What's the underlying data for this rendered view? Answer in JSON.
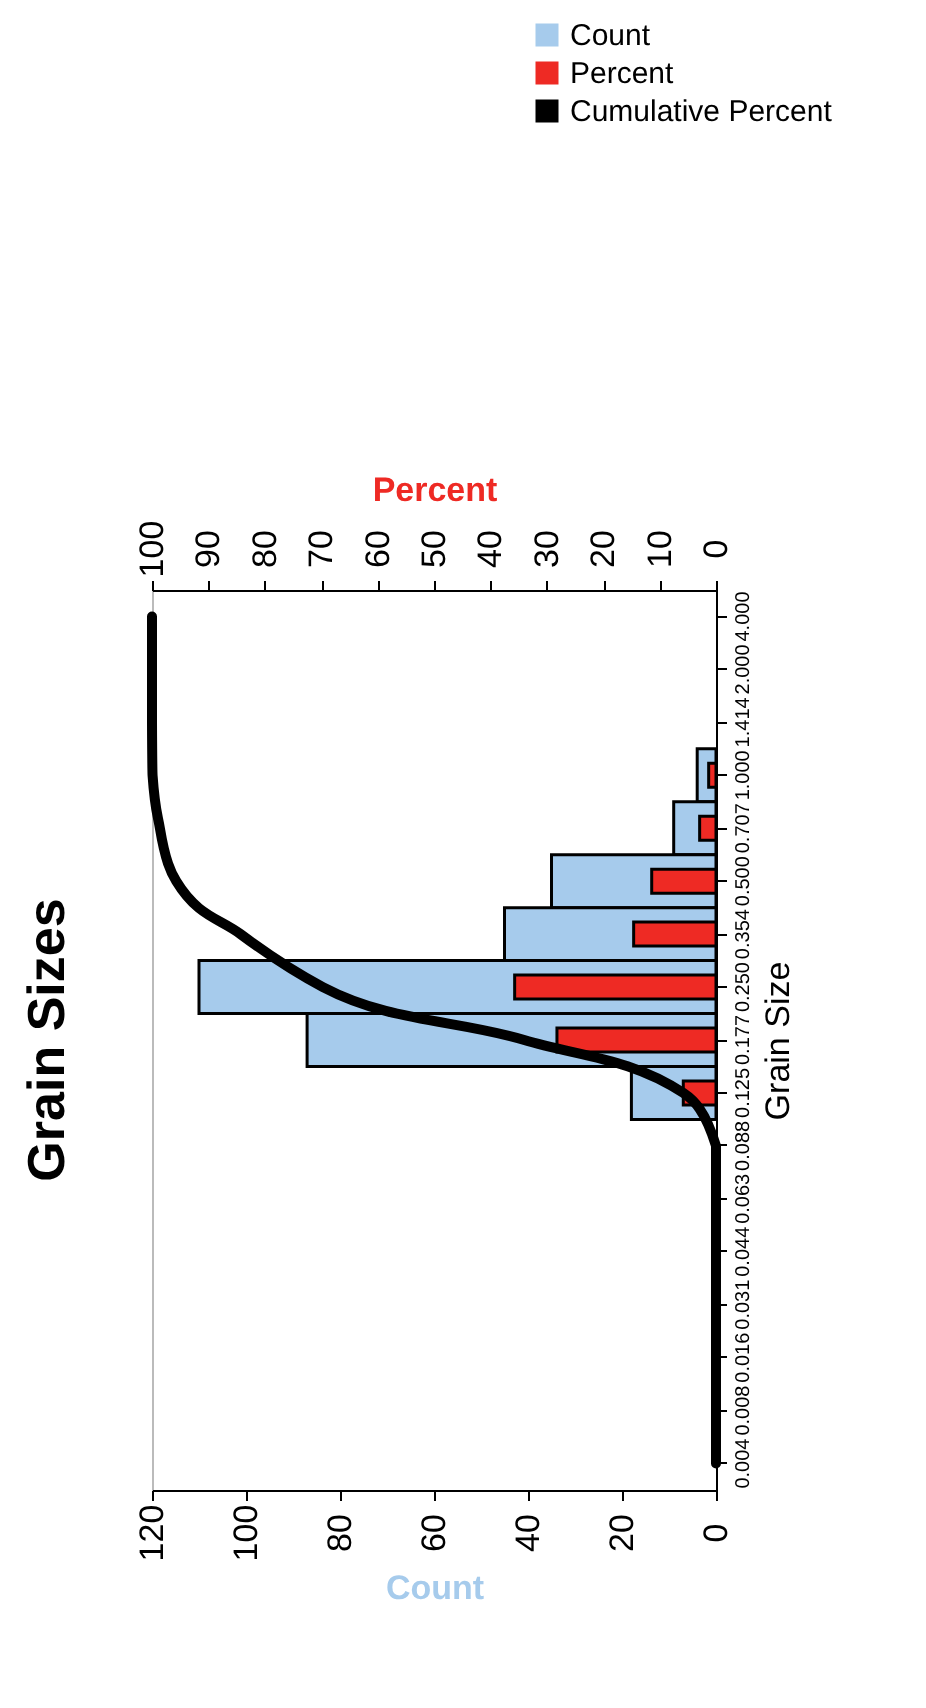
{
  "chart_data": {
    "type": "bar",
    "orientation": "horizontal",
    "title": "Grain Sizes",
    "xlabel": "Count",
    "x2label": "Percent",
    "ylabel": "Grain Size",
    "categories": [
      "4.000",
      "2.000",
      "1.414",
      "1.000",
      "0.707",
      "0.500",
      "0.354",
      "0.250",
      "0.177",
      "0.125",
      "0.088",
      "0.063",
      "0.044",
      "0.031",
      "0.016",
      "0.008",
      "0.004"
    ],
    "xlim": [
      120,
      0
    ],
    "xticks": [
      120,
      100,
      80,
      60,
      40,
      20,
      0
    ],
    "x2lim": [
      100,
      0
    ],
    "x2ticks": [
      100,
      90,
      80,
      70,
      60,
      50,
      40,
      30,
      20,
      10,
      0
    ],
    "legend": "top right",
    "grid": false,
    "series": [
      {
        "name": "Count",
        "color": "#a6cbec",
        "values": [
          0,
          0,
          0,
          4,
          9,
          35,
          45,
          110,
          87,
          18,
          0,
          0,
          0,
          0,
          0,
          0,
          0
        ]
      },
      {
        "name": "Percent",
        "color": "#ee2a24",
        "axis": "x2",
        "values": [
          0,
          0,
          0,
          1.3,
          2.9,
          11.4,
          14.6,
          35.7,
          28.2,
          5.8,
          0,
          0,
          0,
          0,
          0,
          0,
          0
        ]
      },
      {
        "name": "Cumulative Percent",
        "type": "line",
        "color": "#000000",
        "axis": "x2",
        "values": [
          100,
          100,
          100,
          99.9,
          98.6,
          95.7,
          84.3,
          69.7,
          34.0,
          5.8,
          0,
          0,
          0,
          0,
          0,
          0,
          0
        ]
      }
    ]
  }
}
